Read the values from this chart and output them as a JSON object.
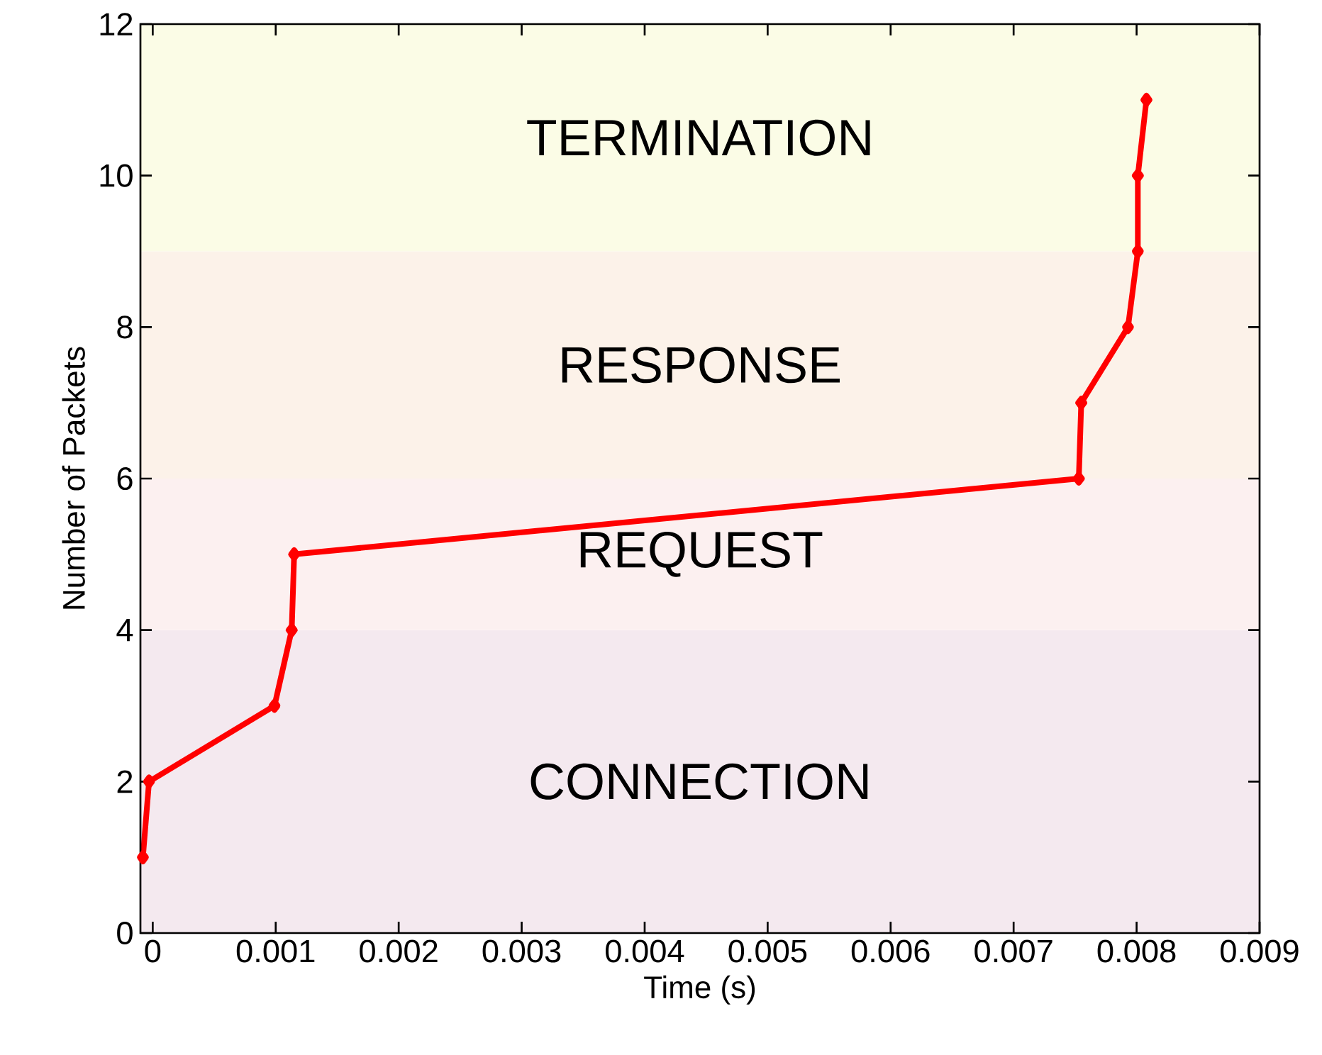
{
  "chart_data": {
    "type": "line",
    "xlabel": "Time (s)",
    "ylabel": "Number of Packets",
    "x": [
      -8e-05,
      -3e-05,
      0.00099,
      0.00113,
      0.00115,
      0.00753,
      0.00755,
      0.00793,
      0.00801,
      0.00801,
      0.00808
    ],
    "series": [
      {
        "color": "#ff0000",
        "values": [
          1,
          2,
          3,
          4,
          5,
          6,
          7,
          8,
          9,
          10,
          11
        ]
      }
    ],
    "marker": "diamond",
    "line_style": "solid",
    "xlim": [
      -0.0001,
      0.009
    ],
    "ylim": [
      0,
      12
    ],
    "xticks": [
      0,
      0.001,
      0.002,
      0.003,
      0.004,
      0.005,
      0.006,
      0.007,
      0.008,
      0.009
    ],
    "yticks": [
      0,
      2,
      4,
      6,
      8,
      10,
      12
    ],
    "bands": [
      {
        "axis": "y",
        "from": 0,
        "to": 4,
        "label": "CONNECTION",
        "color": "#f4e9ef"
      },
      {
        "axis": "y",
        "from": 4,
        "to": 6,
        "label": "REQUEST",
        "color": "#fcf0f0"
      },
      {
        "axis": "y",
        "from": 6,
        "to": 9,
        "label": "RESPONSE",
        "color": "#fcf2e9"
      },
      {
        "axis": "y",
        "from": 9,
        "to": 12,
        "label": "TERMINATION",
        "color": "#fbfce6"
      }
    ]
  }
}
